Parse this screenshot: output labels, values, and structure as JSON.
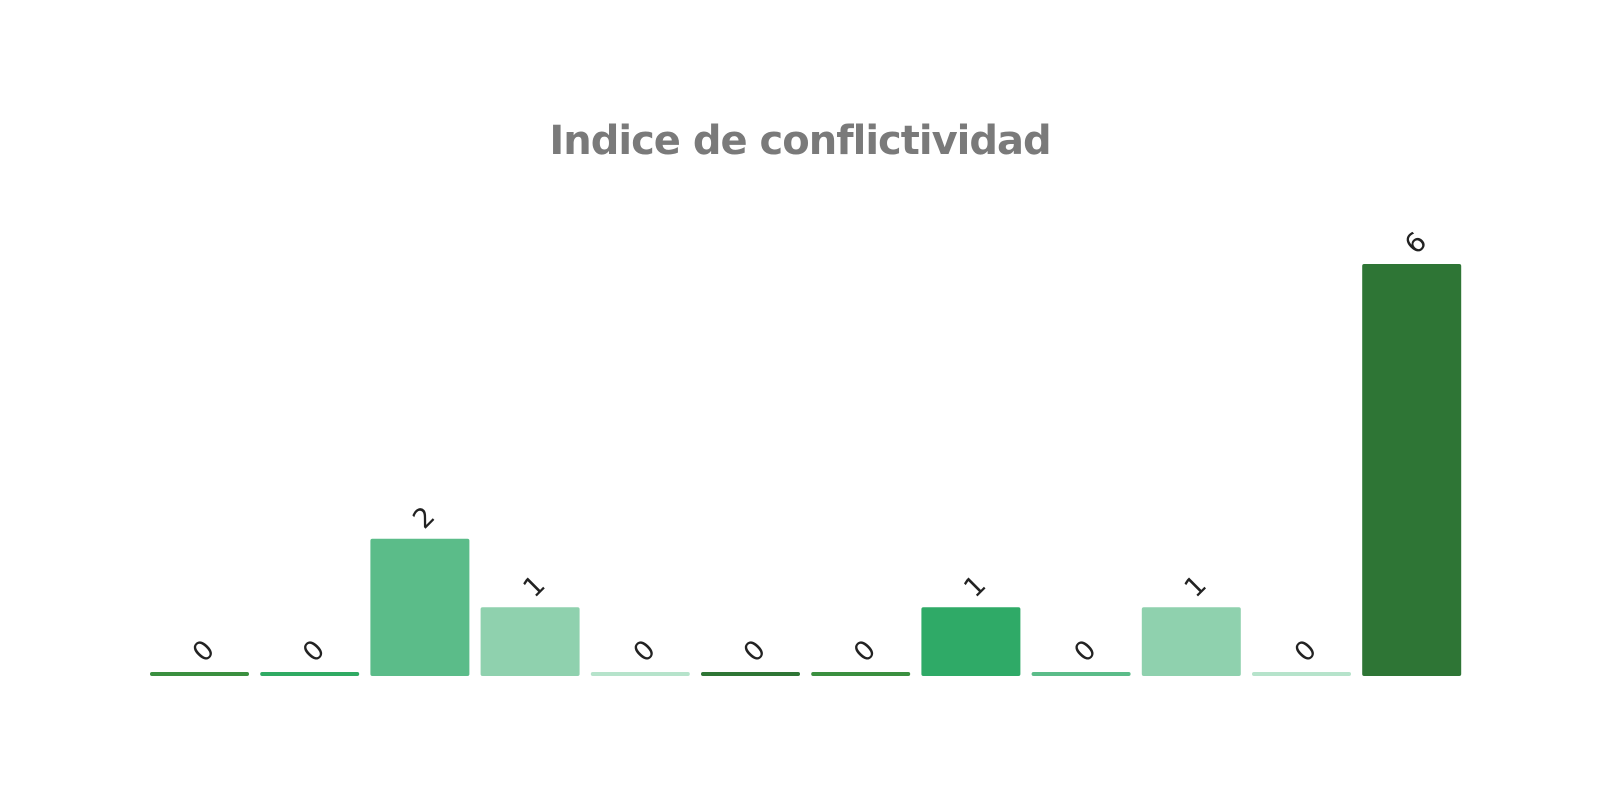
{
  "chart_data": {
    "type": "bar",
    "title": "Indice de conflictividad",
    "xlabel": "",
    "ylabel": "",
    "ylim": [
      0,
      6
    ],
    "grid": false,
    "legend": "none",
    "values": [
      0,
      0,
      2,
      1,
      0,
      0,
      0,
      1,
      0,
      1,
      0,
      6
    ],
    "value_labels": [
      "0",
      "0",
      "2",
      "1",
      "0",
      "0",
      "0",
      "1",
      "0",
      "1",
      "0",
      "6"
    ],
    "colors": [
      "#3a8f3f",
      "#2faa63",
      "#5bbc89",
      "#8fd1ae",
      "#b6e3cb",
      "#2e7535",
      "#3a8f3f",
      "#2faa67",
      "#5bbc89",
      "#8fd1ae",
      "#b6e3cb",
      "#2e7535"
    ]
  }
}
